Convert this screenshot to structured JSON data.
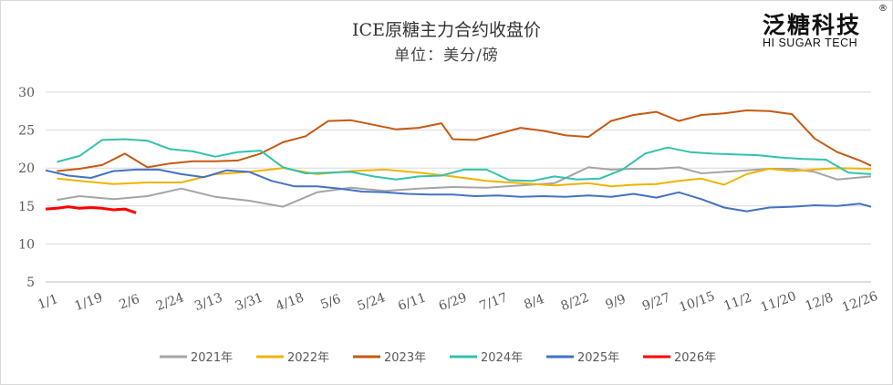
{
  "brand": {
    "name_cn": "泛糖科技",
    "name_en": "HI SUGAR TECH",
    "reg_mark": "®"
  },
  "colors": {
    "2021": "#a5a5a5",
    "2022": "#f0b400",
    "2023": "#c55a11",
    "2024": "#33c2ad",
    "2025": "#4472c4",
    "2026": "#ff0000",
    "grid": "#d9d9d9",
    "axis": "#bfbfbf"
  },
  "chart_data": {
    "type": "line",
    "title": "ICE原糖主力合约收盘价",
    "subtitle": "单位：美分/磅",
    "ylim": [
      5,
      30
    ],
    "yticks": [
      5,
      10,
      15,
      20,
      25,
      30
    ],
    "x_domain": [
      0,
      365
    ],
    "xticks": [
      {
        "label": "1/1",
        "day": 0
      },
      {
        "label": "1/19",
        "day": 18
      },
      {
        "label": "2/6",
        "day": 36
      },
      {
        "label": "2/24",
        "day": 54
      },
      {
        "label": "3/13",
        "day": 71
      },
      {
        "label": "3/31",
        "day": 89
      },
      {
        "label": "4/18",
        "day": 107
      },
      {
        "label": "5/6",
        "day": 125
      },
      {
        "label": "5/24",
        "day": 143
      },
      {
        "label": "6/11",
        "day": 161
      },
      {
        "label": "6/29",
        "day": 179
      },
      {
        "label": "7/17",
        "day": 197
      },
      {
        "label": "8/4",
        "day": 215
      },
      {
        "label": "8/22",
        "day": 233
      },
      {
        "label": "9/9",
        "day": 251
      },
      {
        "label": "9/27",
        "day": 269
      },
      {
        "label": "10/15",
        "day": 287
      },
      {
        "label": "11/2",
        "day": 305
      },
      {
        "label": "11/20",
        "day": 323
      },
      {
        "label": "12/8",
        "day": 341
      },
      {
        "label": "12/26",
        "day": 359
      }
    ],
    "legend": [
      "2021年",
      "2022年",
      "2023年",
      "2024年",
      "2025年",
      "2026年"
    ],
    "series": [
      {
        "name": "2021年",
        "key": "2021",
        "x": [
          5,
          15,
          30,
          45,
          60,
          75,
          90,
          105,
          120,
          135,
          150,
          165,
          180,
          195,
          210,
          225,
          240,
          250,
          260,
          270,
          280,
          290,
          300,
          310,
          320,
          330,
          340,
          350,
          365
        ],
        "y": [
          15.8,
          16.3,
          15.9,
          16.3,
          17.3,
          16.2,
          15.7,
          14.9,
          16.8,
          17.4,
          17.0,
          17.3,
          17.5,
          17.4,
          17.7,
          18.0,
          20.1,
          19.8,
          19.9,
          19.9,
          20.1,
          19.3,
          19.5,
          19.7,
          19.9,
          19.9,
          19.5,
          18.5,
          18.9
        ]
      },
      {
        "name": "2022年",
        "key": "2022",
        "x": [
          5,
          15,
          30,
          45,
          60,
          75,
          90,
          105,
          120,
          135,
          150,
          165,
          180,
          195,
          210,
          225,
          240,
          250,
          260,
          270,
          280,
          290,
          300,
          310,
          320,
          330,
          340,
          350,
          365
        ],
        "y": [
          18.6,
          18.3,
          17.9,
          18.1,
          18.1,
          19.2,
          19.5,
          20.0,
          19.2,
          19.6,
          19.8,
          19.4,
          18.9,
          18.3,
          18.0,
          17.7,
          18.0,
          17.6,
          17.8,
          17.9,
          18.3,
          18.6,
          17.8,
          19.2,
          19.9,
          19.6,
          19.8,
          20.0,
          19.9
        ]
      },
      {
        "name": "2023年",
        "key": "2023",
        "x": [
          5,
          15,
          25,
          35,
          45,
          55,
          65,
          75,
          85,
          95,
          105,
          115,
          125,
          135,
          145,
          155,
          165,
          175,
          180,
          190,
          200,
          210,
          220,
          230,
          240,
          250,
          260,
          270,
          280,
          290,
          300,
          310,
          320,
          330,
          340,
          350,
          360,
          365
        ],
        "y": [
          19.6,
          19.9,
          20.4,
          21.9,
          20.1,
          20.6,
          20.9,
          20.9,
          21.0,
          21.9,
          23.4,
          24.2,
          26.2,
          26.3,
          25.7,
          25.1,
          25.3,
          25.9,
          23.8,
          23.7,
          24.5,
          25.3,
          24.9,
          24.3,
          24.1,
          26.2,
          27.0,
          27.4,
          26.2,
          27.0,
          27.2,
          27.6,
          27.5,
          27.1,
          23.9,
          22.1,
          21.0,
          20.3
        ]
      },
      {
        "name": "2024年",
        "key": "2024",
        "x": [
          5,
          15,
          25,
          35,
          45,
          55,
          65,
          75,
          85,
          95,
          105,
          115,
          125,
          135,
          145,
          155,
          165,
          175,
          185,
          195,
          205,
          215,
          225,
          235,
          245,
          255,
          265,
          275,
          285,
          295,
          305,
          315,
          325,
          335,
          345,
          355,
          365
        ],
        "y": [
          20.8,
          21.6,
          23.7,
          23.8,
          23.6,
          22.5,
          22.2,
          21.5,
          22.1,
          22.3,
          20.1,
          19.3,
          19.4,
          19.5,
          18.9,
          18.5,
          18.9,
          19.0,
          19.8,
          19.8,
          18.4,
          18.3,
          18.9,
          18.5,
          18.6,
          19.8,
          21.9,
          22.7,
          22.1,
          21.9,
          21.8,
          21.7,
          21.4,
          21.2,
          21.1,
          19.4,
          19.2
        ]
      },
      {
        "name": "2025年",
        "key": "2025",
        "x": [
          0,
          10,
          20,
          30,
          40,
          50,
          60,
          70,
          80,
          90,
          100,
          110,
          120,
          130,
          140,
          150,
          160,
          170,
          180,
          190,
          200,
          210,
          220,
          230,
          240,
          250,
          260,
          270,
          280,
          290,
          300,
          310,
          320,
          330,
          340,
          350,
          360,
          365
        ],
        "y": [
          19.7,
          19.0,
          18.7,
          19.6,
          19.8,
          19.8,
          19.2,
          18.8,
          19.7,
          19.5,
          18.3,
          17.6,
          17.6,
          17.3,
          16.9,
          16.8,
          16.6,
          16.5,
          16.5,
          16.3,
          16.4,
          16.2,
          16.3,
          16.2,
          16.4,
          16.2,
          16.6,
          16.1,
          16.8,
          15.9,
          14.8,
          14.3,
          14.8,
          14.9,
          15.1,
          15.0,
          15.3,
          14.9
        ]
      },
      {
        "name": "2026年",
        "key": "2026",
        "x": [
          0,
          5,
          10,
          15,
          20,
          25,
          30,
          35,
          40
        ],
        "y": [
          14.6,
          14.7,
          14.9,
          14.7,
          14.8,
          14.7,
          14.5,
          14.6,
          14.1
        ]
      }
    ]
  }
}
